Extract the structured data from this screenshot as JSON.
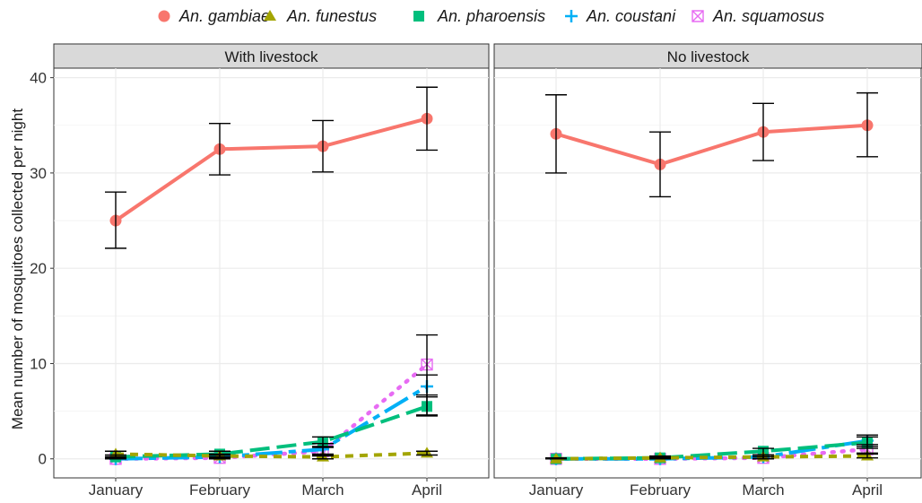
{
  "chart_data": {
    "type": "line",
    "ylabel": "Mean number of mosquitoes collected per night",
    "xlabel": "",
    "ylim": [
      -2,
      41
    ],
    "yticks": [
      0,
      10,
      20,
      30,
      40
    ],
    "categories": [
      "January",
      "February",
      "March",
      "April"
    ],
    "legend_position": "top",
    "grid": true,
    "series_styles": [
      {
        "name": "An. gambiae",
        "color": "#F8766D",
        "dash": "",
        "marker": "circle",
        "width": 4
      },
      {
        "name": "An. funestus",
        "color": "#A3A500",
        "dash": "9,7",
        "marker": "triangle",
        "width": 4
      },
      {
        "name": "An. pharoensis",
        "color": "#00BF7D",
        "dash": "22,8",
        "marker": "square",
        "width": 4
      },
      {
        "name": "An. coustani",
        "color": "#00B0F6",
        "dash": "30,7,8,7",
        "marker": "plus",
        "width": 4
      },
      {
        "name": "An. squamosus",
        "color": "#E76BF3",
        "dash": "2,9",
        "marker": "boxx",
        "width": 4.5
      }
    ],
    "panels": [
      {
        "title": "With livestock",
        "series": [
          {
            "name": "An. gambiae",
            "values": [
              25.0,
              32.5,
              32.8,
              35.7
            ],
            "err_low": [
              22.1,
              29.8,
              30.1,
              32.4
            ],
            "err_high": [
              28.0,
              35.2,
              35.5,
              39.0
            ]
          },
          {
            "name": "An. funestus",
            "values": [
              0.5,
              0.3,
              0.2,
              0.6
            ],
            "err_low": [
              0.2,
              0.1,
              0.0,
              0.4
            ],
            "err_high": [
              0.8,
              0.5,
              0.4,
              0.8
            ]
          },
          {
            "name": "An. pharoensis",
            "values": [
              0.2,
              0.5,
              1.8,
              5.5
            ],
            "err_low": [
              0.0,
              0.2,
              1.2,
              4.5
            ],
            "err_high": [
              0.4,
              0.8,
              2.3,
              6.7
            ]
          },
          {
            "name": "An. coustani",
            "values": [
              0.0,
              0.2,
              1.0,
              7.6
            ],
            "err_low": [
              0.0,
              0.0,
              0.5,
              6.5
            ],
            "err_high": [
              0.2,
              0.4,
              1.6,
              8.8
            ]
          },
          {
            "name": "An. squamosus",
            "values": [
              0.0,
              0.1,
              0.8,
              9.9
            ],
            "err_low": [
              0.0,
              0.0,
              0.3,
              4.6
            ],
            "err_high": [
              0.1,
              0.2,
              1.3,
              13.0
            ]
          }
        ]
      },
      {
        "title": "No livestock",
        "series": [
          {
            "name": "An. gambiae",
            "values": [
              34.1,
              30.9,
              34.3,
              35.0
            ],
            "err_low": [
              30.0,
              27.5,
              31.3,
              31.7
            ],
            "err_high": [
              38.2,
              34.3,
              37.3,
              38.4
            ]
          },
          {
            "name": "An. funestus",
            "values": [
              0.0,
              0.1,
              0.2,
              0.3
            ],
            "err_low": [
              0.0,
              0.0,
              0.0,
              0.1
            ],
            "err_high": [
              0.1,
              0.2,
              0.4,
              0.5
            ]
          },
          {
            "name": "An. pharoensis",
            "values": [
              0.0,
              0.1,
              0.8,
              1.7
            ],
            "err_low": [
              0.0,
              0.0,
              0.4,
              1.1
            ],
            "err_high": [
              0.1,
              0.3,
              1.1,
              2.3
            ]
          },
          {
            "name": "An. coustani",
            "values": [
              0.0,
              0.0,
              0.2,
              1.9
            ],
            "err_low": [
              0.0,
              0.0,
              0.0,
              1.3
            ],
            "err_high": [
              0.1,
              0.1,
              0.4,
              2.5
            ]
          },
          {
            "name": "An. squamosus",
            "values": [
              0.0,
              0.0,
              0.1,
              1.0
            ],
            "err_low": [
              0.0,
              0.0,
              0.0,
              0.6
            ],
            "err_high": [
              0.1,
              0.1,
              0.2,
              1.5
            ]
          }
        ]
      }
    ]
  }
}
